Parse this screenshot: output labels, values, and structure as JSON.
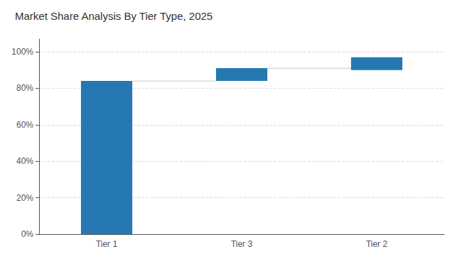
{
  "chart_data": {
    "type": "waterfall",
    "title": "Market Share Analysis By Tier Type, 2025",
    "categories": [
      "Tier 1",
      "Tier 3",
      "Tier 2"
    ],
    "bottoms": [
      0,
      84,
      90
    ],
    "values": [
      84,
      7,
      7
    ],
    "color": "#2678b2",
    "ylim": [
      0,
      107
    ],
    "yticks": [
      {
        "value": 0,
        "label": "0%"
      },
      {
        "value": 20,
        "label": "20%"
      },
      {
        "value": 40,
        "label": "40%"
      },
      {
        "value": 60,
        "label": "60%"
      },
      {
        "value": 80,
        "label": "80%"
      },
      {
        "value": 100,
        "label": "100%"
      }
    ],
    "grid": true
  }
}
